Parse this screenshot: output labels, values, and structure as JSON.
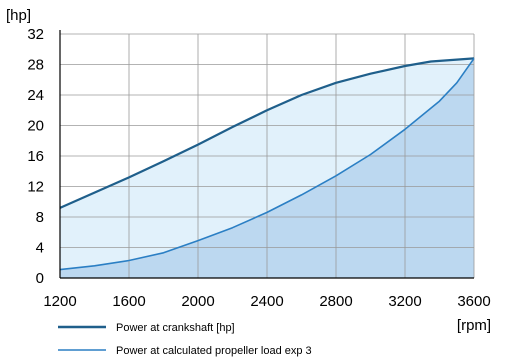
{
  "chart_data": {
    "type": "area",
    "x_unit": "[rpm]",
    "y_unit": "[hp]",
    "xlim": [
      1200,
      3600
    ],
    "ylim": [
      0,
      32
    ],
    "x_ticks": [
      "1200",
      "1600",
      "2000",
      "2400",
      "2800",
      "3200",
      "3600"
    ],
    "y_ticks": [
      "0",
      "4",
      "8",
      "12",
      "16",
      "20",
      "24",
      "28",
      "32"
    ],
    "grid": true,
    "legend_position": "bottom",
    "series": [
      {
        "name": "Power at crankshaft [hp]",
        "color": "#1f5f8b",
        "fill": "#e1f1fb",
        "x": [
          1200,
          1400,
          1600,
          1800,
          2000,
          2200,
          2400,
          2600,
          2800,
          3000,
          3200,
          3350,
          3600
        ],
        "y": [
          9.2,
          11.2,
          13.2,
          15.3,
          17.5,
          19.8,
          22.0,
          24.0,
          25.6,
          26.8,
          27.8,
          28.4,
          28.8
        ]
      },
      {
        "name": "Power at calculated propeller load exp 3",
        "color": "#2b7fc4",
        "fill": "#bcd8f0",
        "x": [
          1200,
          1400,
          1600,
          1800,
          2000,
          2200,
          2400,
          2600,
          2800,
          3000,
          3200,
          3400,
          3500,
          3600
        ],
        "y": [
          1.1,
          1.6,
          2.3,
          3.3,
          4.9,
          6.6,
          8.6,
          10.9,
          13.4,
          16.2,
          19.5,
          23.2,
          25.6,
          28.8
        ]
      }
    ]
  }
}
